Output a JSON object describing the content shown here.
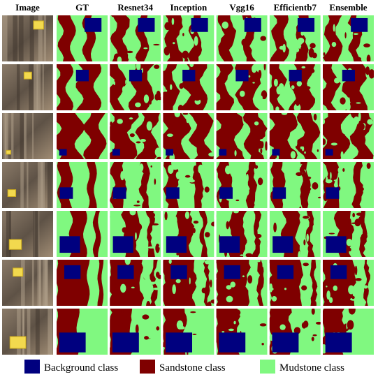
{
  "header": {
    "columns": [
      "Image",
      "GT",
      "Resnet34",
      "Inception",
      "Vgg16",
      "Efficientb7",
      "Ensemble"
    ]
  },
  "legend": {
    "items": [
      {
        "label": "Background class",
        "color": "#00007f"
      },
      {
        "label": "Sandstone class",
        "color": "#7f0000"
      },
      {
        "label": "Mudstone class",
        "color": "#80f880"
      }
    ]
  }
}
